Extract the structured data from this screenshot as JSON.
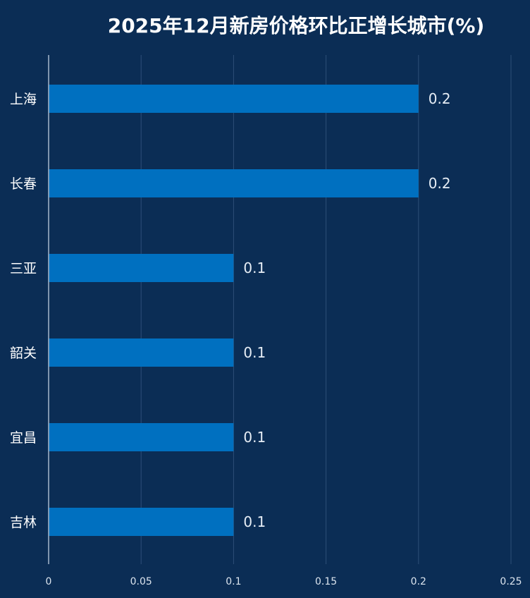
{
  "chart_data": {
    "type": "bar",
    "orientation": "horizontal",
    "title": "2025年12月新房价格环比正增长城市(%)",
    "categories": [
      "上海",
      "长春",
      "三亚",
      "韶关",
      "宜昌",
      "吉林"
    ],
    "values": [
      0.2,
      0.2,
      0.1,
      0.1,
      0.1,
      0.1
    ],
    "data_labels": [
      "0.2",
      "0.2",
      "0.1",
      "0.1",
      "0.1",
      "0.1"
    ],
    "xlim": [
      0,
      0.25
    ],
    "x_ticks": [
      0,
      0.05,
      0.1,
      0.15,
      0.2,
      0.25
    ],
    "x_tick_labels": [
      "0",
      "0.05",
      "0.1",
      "0.15",
      "0.2",
      "0.25"
    ],
    "grid": true,
    "legend": "none",
    "colors": {
      "background": "#0b2d55",
      "bar": "#0070c0",
      "grid": "#2e4f78",
      "axis": "#a8b8cc",
      "text": "#ffffff"
    }
  }
}
